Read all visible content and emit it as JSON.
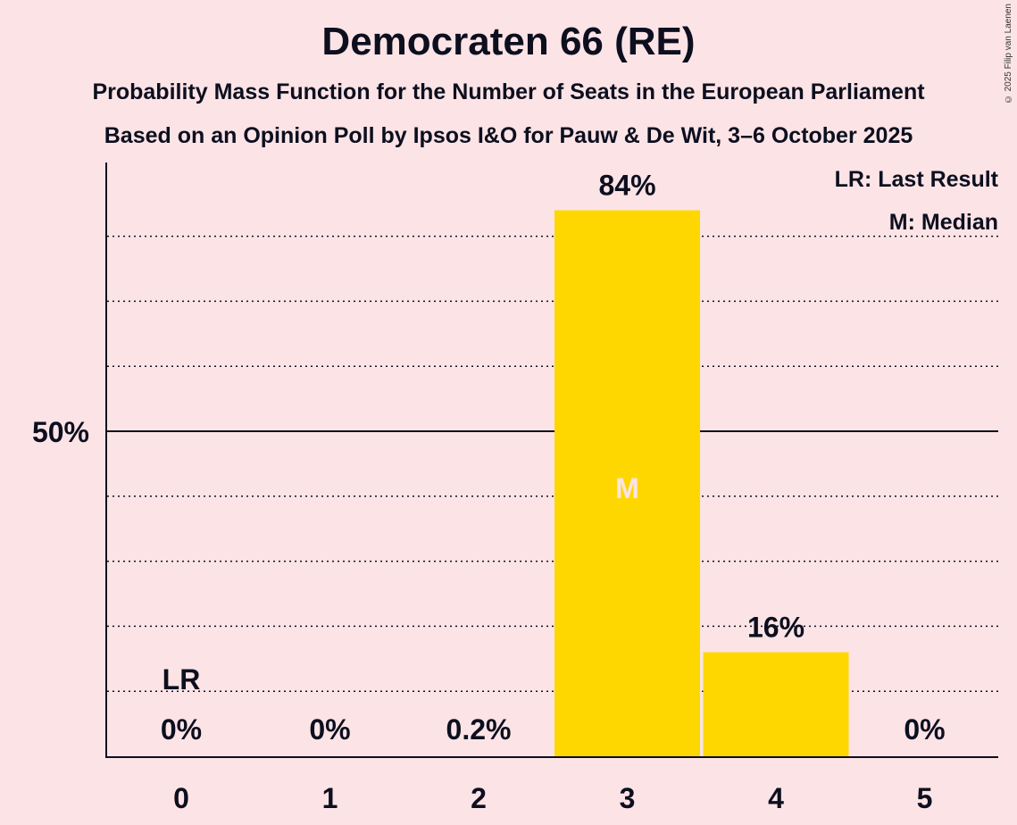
{
  "header": {
    "title": "Democraten 66 (RE)",
    "subtitle1": "Probability Mass Function for the Number of Seats in the European Parliament",
    "subtitle2": "Based on an Opinion Poll by Ipsos I&O for Pauw & De Wit, 3–6 October 2025",
    "copyright": "© 2025 Filip van Laenen"
  },
  "colors": {
    "background": "#fce4e6",
    "bar": "#ffd700",
    "text": "#0d0f1f",
    "median_label": "#fce4e6"
  },
  "chart_data": {
    "type": "bar",
    "title": "Democraten 66 (RE)",
    "xlabel": "",
    "ylabel": "",
    "categories": [
      "0",
      "1",
      "2",
      "3",
      "4",
      "5"
    ],
    "values": [
      0,
      0,
      0.2,
      84,
      16,
      0
    ],
    "value_labels": [
      "0%",
      "0%",
      "0.2%",
      "84%",
      "16%",
      "0%"
    ],
    "ylim": [
      0,
      90
    ],
    "y_ticks": [
      {
        "value": 50,
        "label": "50%"
      }
    ],
    "gridlines": [
      10,
      20,
      30,
      40,
      60,
      70,
      80
    ],
    "solid_gridline": 50,
    "last_result_index": 0,
    "last_result_label": "LR",
    "median_index": 3,
    "median_label": "M",
    "legend": [
      "LR: Last Result",
      "M: Median"
    ],
    "legend_position": "top-right"
  }
}
